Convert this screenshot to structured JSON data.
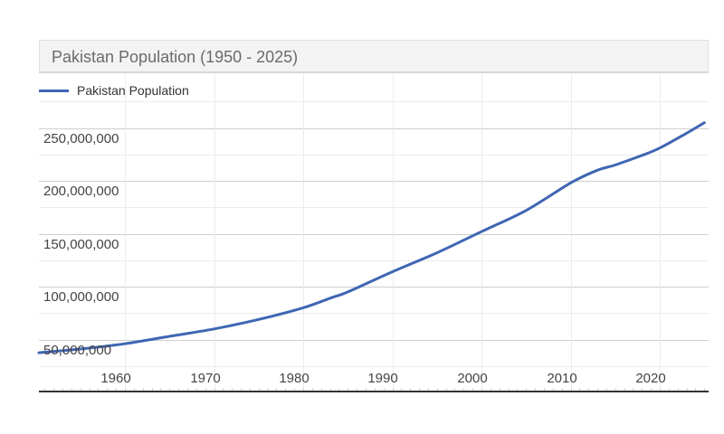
{
  "header": {
    "title": "Pakistan Population (1950 - 2025)"
  },
  "legend": {
    "label": "Pakistan Population",
    "color": "#3f66b3"
  },
  "axes": {
    "y_ticks": [
      "250,000,000",
      "200,000,000",
      "150,000,000",
      "100,000,000",
      "50,000,000"
    ],
    "x_ticks": [
      "1960",
      "1970",
      "1980",
      "1990",
      "2000",
      "2010",
      "2020"
    ]
  },
  "chart_data": {
    "type": "line",
    "title": "Pakistan Population (1950 - 2025)",
    "xlabel": "",
    "ylabel": "",
    "legend": [
      "Pakistan Population"
    ],
    "legend_position": "top-left",
    "grid": true,
    "xlim": [
      1950,
      2026
    ],
    "ylim": [
      0,
      275000000
    ],
    "x_ticks": [
      1960,
      1970,
      1980,
      1990,
      2000,
      2010,
      2020
    ],
    "y_ticks": [
      50000000,
      100000000,
      150000000,
      200000000,
      250000000
    ],
    "x": [
      1950,
      1955,
      1960,
      1965,
      1970,
      1975,
      1980,
      1983,
      1985,
      1990,
      1995,
      2000,
      2005,
      2010,
      2013,
      2015,
      2018,
      2020,
      2023,
      2025
    ],
    "series": [
      {
        "name": "Pakistan Population",
        "color": "#3f66b3",
        "values": [
          37500000,
          41000000,
          46000000,
          53000000,
          60000000,
          69000000,
          80000000,
          89000000,
          95000000,
          114000000,
          132000000,
          152000000,
          172000000,
          198000000,
          210000000,
          215000000,
          224000000,
          231000000,
          245000000,
          255000000
        ]
      }
    ]
  }
}
